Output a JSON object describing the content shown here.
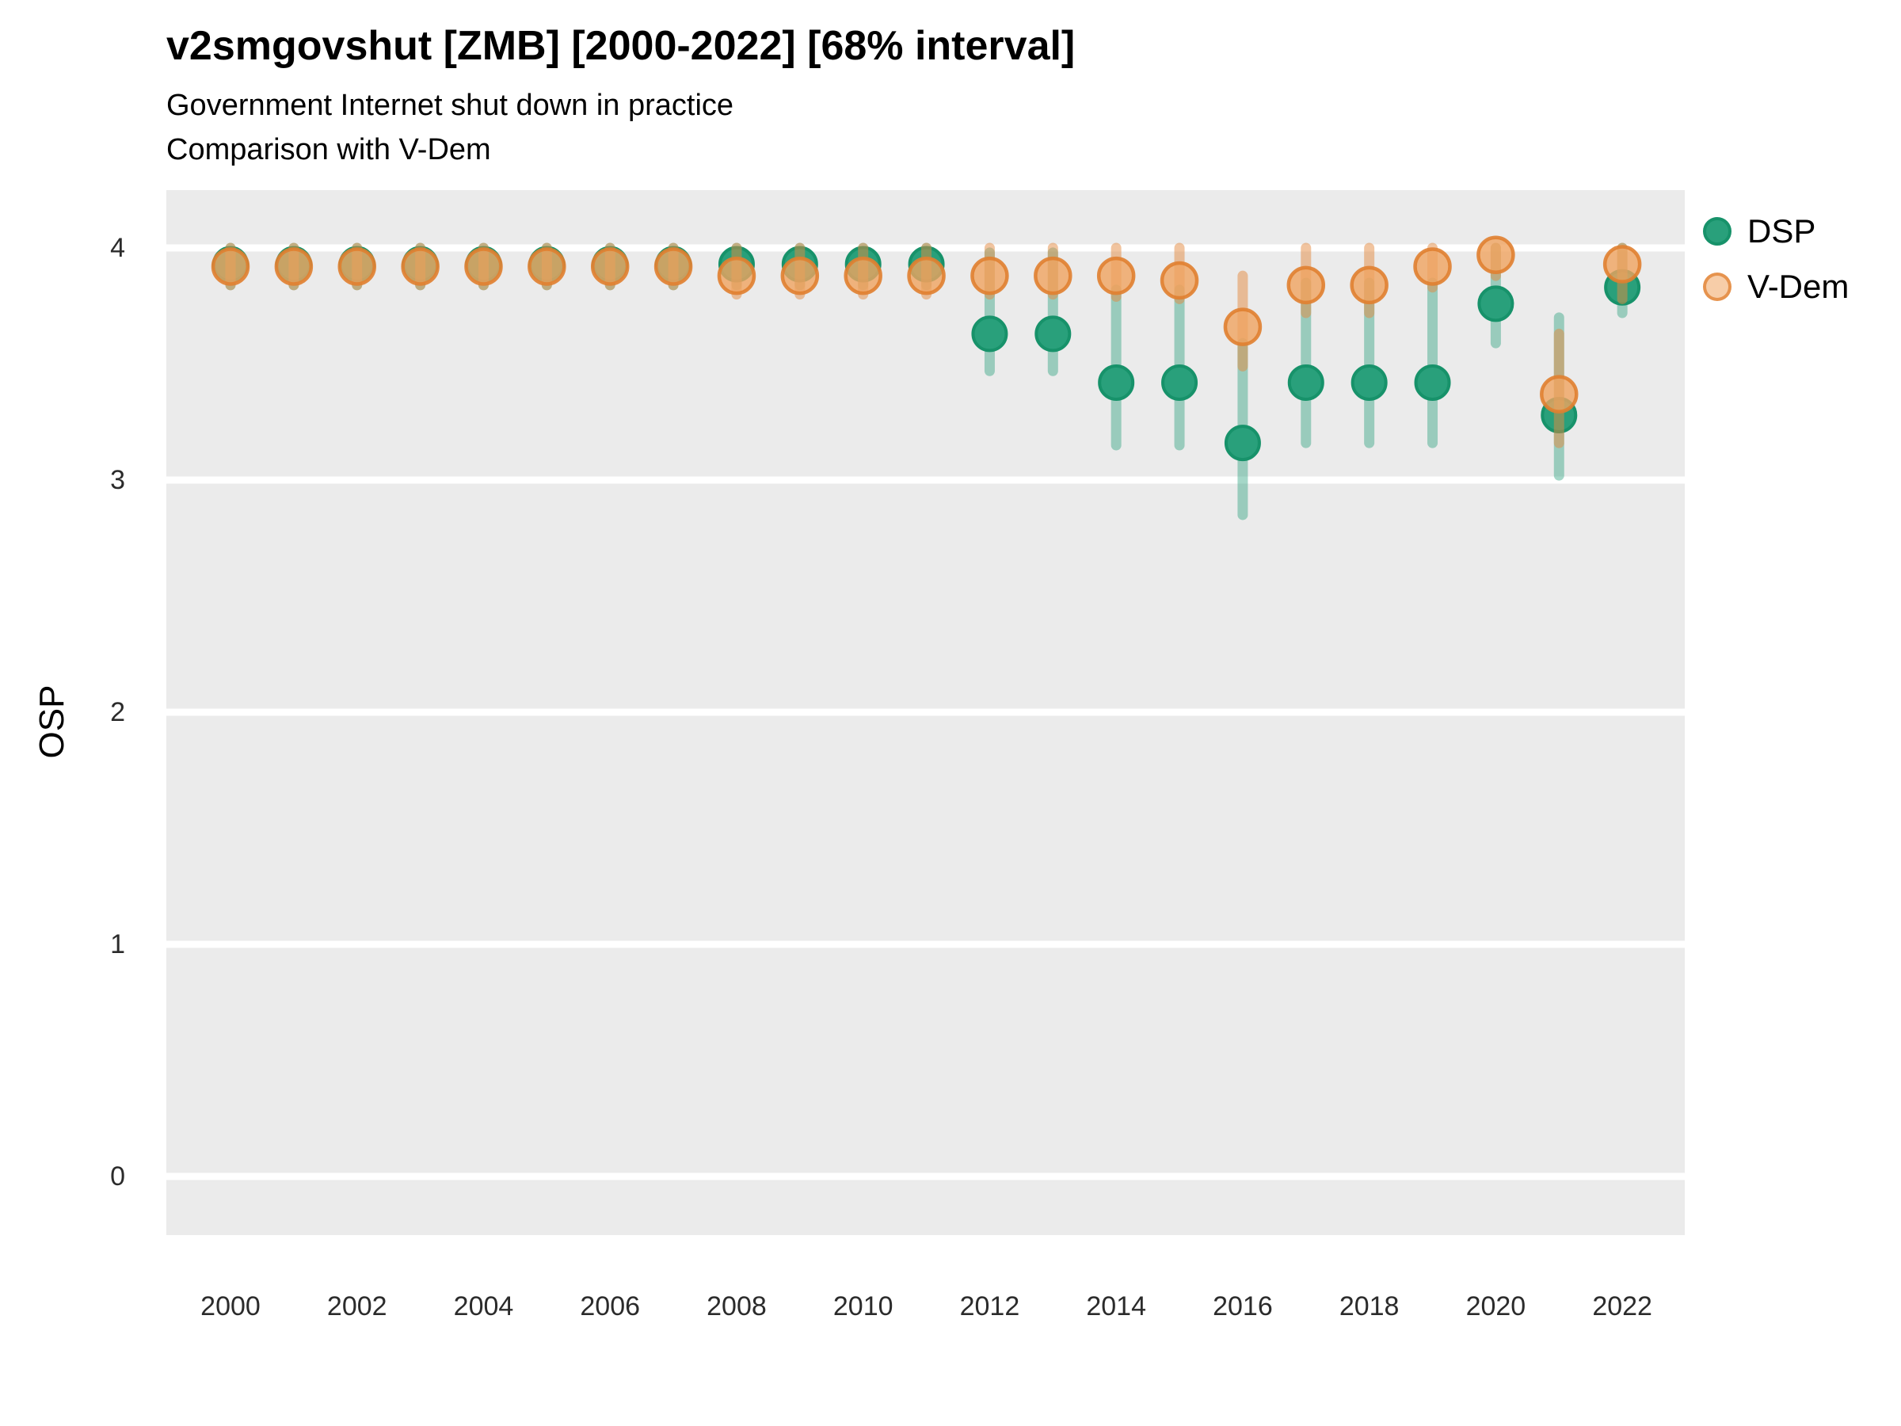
{
  "chart_data": {
    "type": "pointrange",
    "title": "v2smgovshut [ZMB] [2000-2022] [68% interval]",
    "subtitle_line1": "Government Internet shut down in practice",
    "subtitle_line2": "Comparison with V-Dem",
    "ylabel": "OSP",
    "xlabel": "",
    "ylim": [
      -0.25,
      4.25
    ],
    "xlim": [
      1999,
      2023
    ],
    "yticks": [
      0,
      1,
      2,
      3,
      4
    ],
    "xticks": [
      2000,
      2002,
      2004,
      2006,
      2008,
      2010,
      2012,
      2014,
      2016,
      2018,
      2020,
      2022
    ],
    "grid": "major-horizontal-white-on-gray",
    "legend_position": "right-top",
    "panel_background": "#ebebeb",
    "gridline_color": "#ffffff",
    "x": [
      2000,
      2001,
      2002,
      2003,
      2004,
      2005,
      2006,
      2007,
      2008,
      2009,
      2010,
      2011,
      2012,
      2013,
      2014,
      2015,
      2016,
      2017,
      2018,
      2019,
      2020,
      2021,
      2022
    ],
    "series": [
      {
        "name": "DSP",
        "marker_color": "#29a07b",
        "marker_stroke": "#17926a",
        "interval_color": "rgba(41,160,123,0.42)",
        "est": [
          3.93,
          3.93,
          3.93,
          3.93,
          3.93,
          3.93,
          3.93,
          3.93,
          3.93,
          3.93,
          3.93,
          3.93,
          3.63,
          3.63,
          3.42,
          3.42,
          3.16,
          3.42,
          3.42,
          3.42,
          3.76,
          3.28,
          3.83
        ],
        "lo": [
          3.84,
          3.84,
          3.84,
          3.84,
          3.84,
          3.84,
          3.84,
          3.84,
          3.84,
          3.84,
          3.84,
          3.84,
          3.47,
          3.47,
          3.15,
          3.15,
          2.85,
          3.16,
          3.16,
          3.16,
          3.59,
          3.02,
          3.72
        ],
        "hi": [
          4.0,
          4.0,
          4.0,
          4.0,
          4.0,
          4.0,
          4.0,
          4.0,
          4.0,
          4.0,
          4.0,
          4.0,
          3.98,
          3.98,
          3.82,
          3.82,
          3.59,
          3.85,
          3.85,
          3.85,
          4.0,
          3.7,
          4.0
        ]
      },
      {
        "name": "V-Dem",
        "marker_color": "rgba(240,164,96,0.80)",
        "marker_stroke": "rgba(224,128,48,0.90)",
        "interval_color": "rgba(228,138,64,0.50)",
        "est": [
          3.92,
          3.92,
          3.92,
          3.92,
          3.92,
          3.92,
          3.92,
          3.92,
          3.88,
          3.88,
          3.88,
          3.88,
          3.88,
          3.88,
          3.88,
          3.86,
          3.66,
          3.84,
          3.84,
          3.92,
          3.97,
          3.37,
          3.93
        ],
        "lo": [
          3.84,
          3.84,
          3.84,
          3.84,
          3.84,
          3.84,
          3.84,
          3.84,
          3.8,
          3.8,
          3.8,
          3.8,
          3.8,
          3.8,
          3.79,
          3.78,
          3.49,
          3.72,
          3.72,
          3.83,
          3.88,
          3.16,
          3.78
        ],
        "hi": [
          4.0,
          4.0,
          4.0,
          4.0,
          4.0,
          4.0,
          4.0,
          4.0,
          4.0,
          4.0,
          4.0,
          4.0,
          4.0,
          4.0,
          4.0,
          4.0,
          3.88,
          4.0,
          4.0,
          4.0,
          4.0,
          3.63,
          4.0
        ]
      }
    ]
  }
}
